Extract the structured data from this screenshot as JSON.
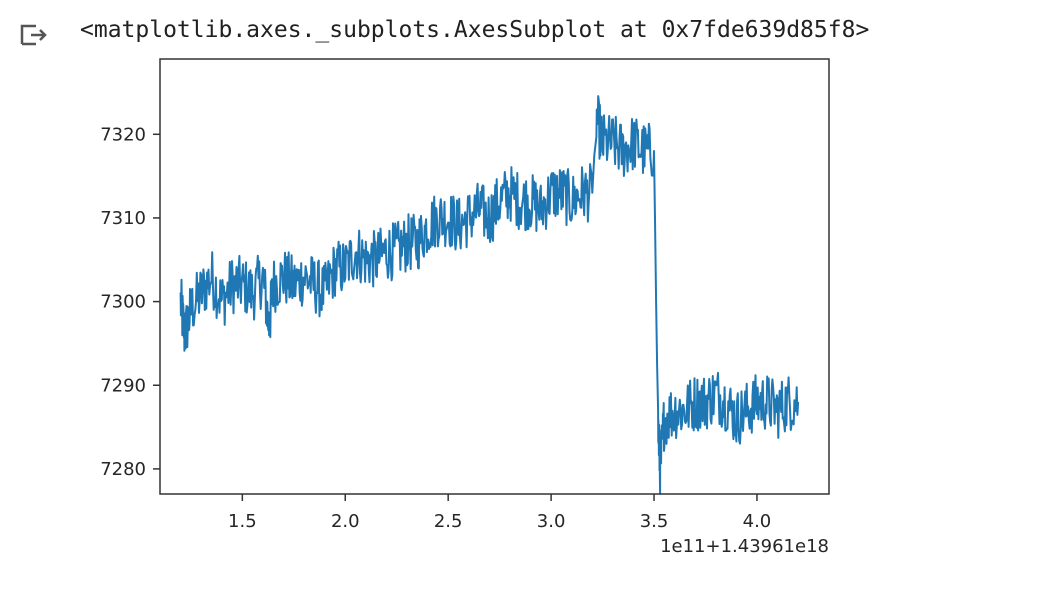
{
  "output": {
    "icon": "output-arrow-icon",
    "repr": "<matplotlib.axes._subplots.AxesSubplot at 0x7fde639d85f8>"
  },
  "chart_data": {
    "type": "line",
    "title": "",
    "xlabel": "",
    "ylabel": "",
    "x_offset_label": "1e11+1.43961e18",
    "xlim": [
      1.1,
      4.35
    ],
    "ylim": [
      7277,
      7329
    ],
    "x_ticks": [
      1.5,
      2.0,
      2.5,
      3.0,
      3.5,
      4.0
    ],
    "x_tick_labels": [
      "1.5",
      "2.0",
      "2.5",
      "3.0",
      "3.5",
      "4.0"
    ],
    "y_ticks": [
      7280,
      7290,
      7300,
      7310,
      7320
    ],
    "y_tick_labels": [
      "7280",
      "7290",
      "7300",
      "7310",
      "7320"
    ],
    "grid": false,
    "legend": "none",
    "color": "#1f77b4",
    "series": [
      {
        "x": [
          1.2,
          1.22,
          1.25,
          1.3,
          1.35,
          1.4,
          1.45,
          1.5,
          1.55,
          1.6,
          1.63,
          1.65,
          1.7,
          1.75,
          1.8,
          1.85,
          1.9,
          1.95,
          2.0,
          2.05,
          2.1,
          2.15,
          2.2,
          2.25,
          2.3,
          2.35,
          2.4,
          2.45,
          2.5,
          2.55,
          2.6,
          2.65,
          2.7,
          2.75,
          2.8,
          2.85,
          2.9,
          2.95,
          3.0,
          3.05,
          3.1,
          3.15,
          3.2,
          3.22,
          3.25,
          3.3,
          3.35,
          3.4,
          3.45,
          3.5,
          3.51,
          3.52,
          3.53,
          3.55,
          3.6,
          3.65,
          3.7,
          3.75,
          3.8,
          3.85,
          3.9,
          3.95,
          4.0,
          4.05,
          4.1,
          4.15,
          4.2
        ],
        "values": [
          7300,
          7296,
          7299,
          7301,
          7303,
          7300,
          7302,
          7302,
          7301,
          7303,
          7297,
          7302,
          7303,
          7302,
          7303,
          7302,
          7301,
          7304,
          7304,
          7306,
          7305,
          7305,
          7306,
          7306,
          7307,
          7307,
          7309,
          7310,
          7310,
          7309,
          7310,
          7311,
          7310,
          7312,
          7313,
          7312,
          7312,
          7311,
          7313,
          7313,
          7312,
          7313,
          7313,
          7322,
          7319,
          7319,
          7318,
          7319,
          7318,
          7318,
          7300,
          7285,
          7280,
          7286,
          7287,
          7287,
          7288,
          7288,
          7289,
          7288,
          7286,
          7287,
          7288,
          7288,
          7287,
          7288,
          7288
        ]
      }
    ]
  }
}
